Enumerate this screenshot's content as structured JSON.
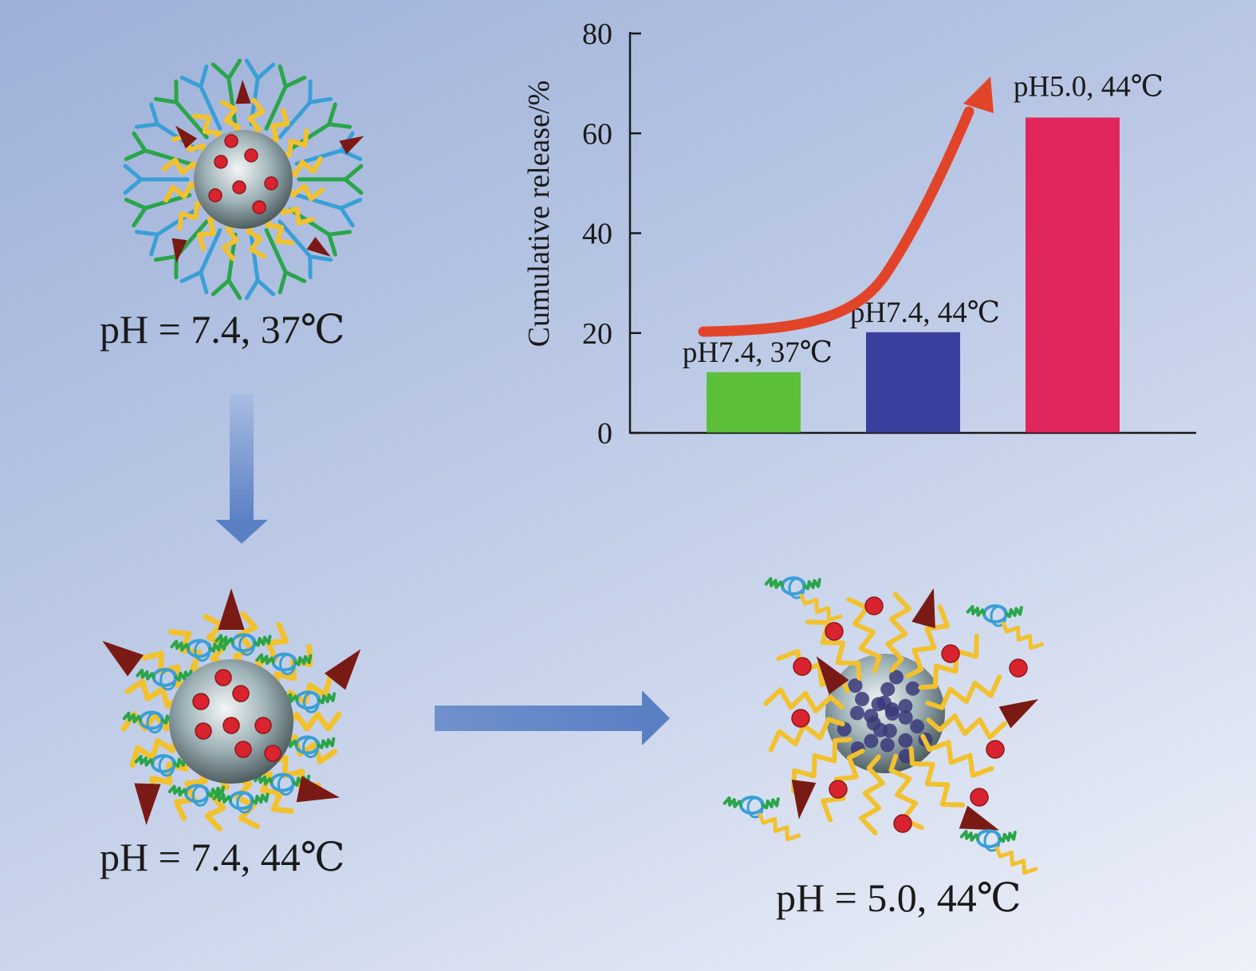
{
  "labels": {
    "state_a": "pH = 7.4, 37℃",
    "state_b": "pH = 7.4, 44℃",
    "state_c": "pH = 5.0, 44℃"
  },
  "chart_data": {
    "type": "bar",
    "categories": [
      "pH7.4, 37℃",
      "pH7.4, 44℃",
      "pH5.0, 44℃"
    ],
    "values": [
      12,
      20,
      63
    ],
    "colors": [
      "#5cbf3a",
      "#3a3e9c",
      "#e0265a"
    ],
    "ylabel": "Cumulative release/%",
    "xlabel": "",
    "ylim": [
      0,
      80
    ],
    "yticks": [
      0,
      20,
      40,
      60,
      80
    ],
    "trend_arrow_color": "#e2442a"
  },
  "colors": {
    "arrow_blue": "#5a80c4",
    "core": "#8aa0a8",
    "drug_red": "#d9232f",
    "drug_dark": "#7a1a14",
    "chain_yellow": "#f2c12e",
    "chain_blue": "#3a9fd6",
    "chain_green": "#2aa54a",
    "core_dots": "#3a3a7a"
  }
}
